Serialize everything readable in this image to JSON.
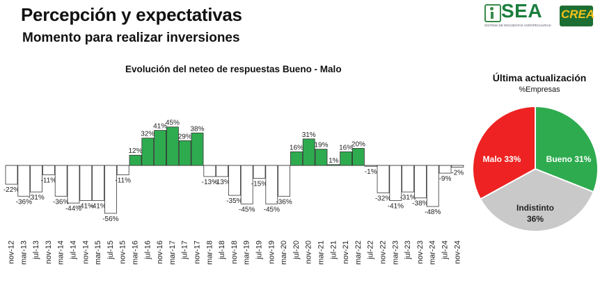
{
  "header": {
    "title": "Percepción y expectativas",
    "subtitle": "Momento para realizar inversiones"
  },
  "logos": {
    "sea_text": "SEA",
    "sea_tagline": "SISTEMA DE ENCUESTAS AGROPECUARIAS",
    "crea_text": "CREA"
  },
  "chart_data": [
    {
      "type": "bar",
      "title": "Evolución del neteo de respuestas Bueno - Malo",
      "categories": [
        "nov-12",
        "mar-13",
        "jul-13",
        "nov-13",
        "mar-14",
        "jul-14",
        "nov-14",
        "mar-15",
        "jul-15",
        "nov-15",
        "mar-16",
        "jul-16",
        "nov-16",
        "mar-17",
        "jul-17",
        "nov-17",
        "mar-18",
        "jul-18",
        "nov-18",
        "mar-19",
        "jul-19",
        "nov-19",
        "mar-20",
        "jul-20",
        "nov-20",
        "mar-21",
        "jul-21",
        "nov-21",
        "mar-22",
        "jul-22",
        "nov-22",
        "mar-23",
        "jul-23",
        "nov-23",
        "mar-24",
        "jul-24",
        "nov-24"
      ],
      "values": [
        -22,
        -36,
        -31,
        -11,
        -36,
        -44,
        -41,
        -41,
        -56,
        -11,
        12,
        32,
        41,
        45,
        29,
        38,
        -13,
        -13,
        -35,
        -45,
        -15,
        -45,
        -36,
        16,
        31,
        19,
        1,
        16,
        20,
        -1,
        -32,
        -41,
        -31,
        -38,
        -48,
        -9,
        -2
      ],
      "labels": [
        "-22%",
        "-36%",
        "-31%",
        "-11%",
        "-36%",
        "-44%",
        "-41%",
        "-41%",
        "-56%",
        "-11%",
        "12%",
        "32%",
        "41%",
        "45%",
        "29%",
        "38%",
        "-13%",
        "-13%",
        "-35%",
        "-45%",
        "-15%",
        "-45%",
        "-36%",
        "16%",
        "31%",
        "19%",
        "1%",
        "16%",
        "20%",
        "-1%",
        "-32%",
        "-41%",
        "-31%",
        "-38%",
        "-48%",
        "-9%",
        "-2%"
      ],
      "colors": {
        "positive": "#2eab4f",
        "negative": "#ffffff",
        "border": "#333333"
      }
    },
    {
      "type": "pie",
      "title": "Última actualización",
      "subtitle": "%Empresas",
      "slices": [
        {
          "name": "Bueno",
          "value": 31,
          "label": "Bueno 31%",
          "color": "#2eab4f"
        },
        {
          "name": "Indistinto",
          "value": 36,
          "label": "Indistinto",
          "value_label": "36%",
          "color": "#c9c9c9"
        },
        {
          "name": "Malo",
          "value": 33,
          "label": "Malo 33%",
          "color": "#ee2222"
        }
      ]
    }
  ]
}
